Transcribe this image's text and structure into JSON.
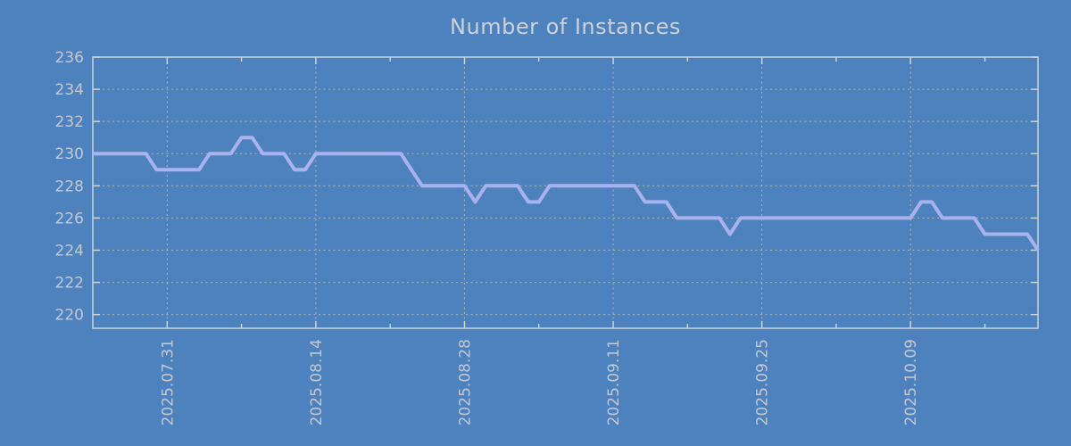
{
  "title": "Number of Instances",
  "colors": {
    "background": "#4e82be",
    "line": "#a9b2ee",
    "grid": "#bdbfb2",
    "frame": "#d5d7d9",
    "tick_text": "#c3c8d0",
    "title_text": "#ccd2d9"
  },
  "chart_data": {
    "type": "line",
    "title": "Number of Instances",
    "xlabel": "",
    "ylabel": "",
    "grid": true,
    "legend": "none",
    "ylim": [
      219.15,
      236
    ],
    "y_ticks": [
      220,
      222,
      224,
      226,
      228,
      230,
      232,
      234,
      236
    ],
    "x_tick_labels": [
      "2025.07.31",
      "2025.08.14",
      "2025.08.28",
      "2025.09.11",
      "2025.09.25",
      "2025.10.09"
    ],
    "x_tick_interval_days": 14,
    "series_name": "Number of Instances",
    "dates": [
      "2025.07.24",
      "2025.07.25",
      "2025.07.26",
      "2025.07.27",
      "2025.07.28",
      "2025.07.29",
      "2025.07.30",
      "2025.07.31",
      "2025.08.01",
      "2025.08.02",
      "2025.08.03",
      "2025.08.04",
      "2025.08.05",
      "2025.08.06",
      "2025.08.07",
      "2025.08.08",
      "2025.08.09",
      "2025.08.10",
      "2025.08.11",
      "2025.08.12",
      "2025.08.13",
      "2025.08.14",
      "2025.08.15",
      "2025.08.16",
      "2025.08.17",
      "2025.08.18",
      "2025.08.19",
      "2025.08.20",
      "2025.08.21",
      "2025.08.22",
      "2025.08.23",
      "2025.08.24",
      "2025.08.25",
      "2025.08.26",
      "2025.08.27",
      "2025.08.28",
      "2025.08.29",
      "2025.08.30",
      "2025.08.31",
      "2025.09.01",
      "2025.09.02",
      "2025.09.03",
      "2025.09.04",
      "2025.09.05",
      "2025.09.06",
      "2025.09.07",
      "2025.09.08",
      "2025.09.09",
      "2025.09.10",
      "2025.09.11",
      "2025.09.12",
      "2025.09.13",
      "2025.09.14",
      "2025.09.15",
      "2025.09.16",
      "2025.09.17",
      "2025.09.18",
      "2025.09.19",
      "2025.09.20",
      "2025.09.21",
      "2025.09.22",
      "2025.09.23",
      "2025.09.24",
      "2025.09.25",
      "2025.09.26",
      "2025.09.27",
      "2025.09.28",
      "2025.09.29",
      "2025.09.30",
      "2025.10.01",
      "2025.10.02",
      "2025.10.03",
      "2025.10.04",
      "2025.10.05",
      "2025.10.06",
      "2025.10.07",
      "2025.10.08",
      "2025.10.09",
      "2025.10.10",
      "2025.10.11",
      "2025.10.12",
      "2025.10.13",
      "2025.10.14",
      "2025.10.15",
      "2025.10.16",
      "2025.10.17",
      "2025.10.18",
      "2025.10.19",
      "2025.10.20",
      "2025.10.21"
    ],
    "values": [
      230,
      230,
      230,
      230,
      230,
      230,
      229,
      229,
      229,
      229,
      229,
      230,
      230,
      230,
      231,
      231,
      230,
      230,
      230,
      229,
      229,
      230,
      230,
      230,
      230,
      230,
      230,
      230,
      230,
      230,
      229,
      228,
      228,
      228,
      228,
      228,
      227,
      228,
      228,
      228,
      228,
      227,
      227,
      228,
      228,
      228,
      228,
      228,
      228,
      228,
      228,
      228,
      227,
      227,
      227,
      226,
      226,
      226,
      226,
      226,
      225,
      226,
      226,
      226,
      226,
      226,
      226,
      226,
      226,
      226,
      226,
      226,
      226,
      226,
      226,
      226,
      226,
      226,
      227,
      227,
      226,
      226,
      226,
      226,
      225,
      225,
      225,
      225,
      225,
      224
    ]
  }
}
